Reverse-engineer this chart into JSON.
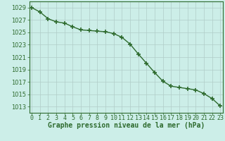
{
  "x": [
    0,
    1,
    2,
    3,
    4,
    5,
    6,
    7,
    8,
    9,
    10,
    11,
    12,
    13,
    14,
    15,
    16,
    17,
    18,
    19,
    20,
    21,
    22,
    23
  ],
  "y": [
    1029.0,
    1028.3,
    1027.2,
    1026.7,
    1026.5,
    1025.9,
    1025.4,
    1025.3,
    1025.2,
    1025.1,
    1024.8,
    1024.2,
    1023.1,
    1021.5,
    1020.0,
    1018.5,
    1017.1,
    1016.3,
    1016.1,
    1015.9,
    1015.7,
    1015.1,
    1014.3,
    1013.1
  ],
  "line_color": "#2d6a2d",
  "marker": "+",
  "marker_size": 4,
  "marker_lw": 1.2,
  "bg_color": "#cceee8",
  "grid_color": "#b0ccc8",
  "xlabel": "Graphe pression niveau de la mer (hPa)",
  "xlabel_fontsize": 7,
  "ylabel_ticks": [
    1013,
    1015,
    1017,
    1019,
    1021,
    1023,
    1025,
    1027,
    1029
  ],
  "ylim": [
    1012.0,
    1030.0
  ],
  "xlim": [
    -0.3,
    23.3
  ],
  "tick_fontsize": 6,
  "tick_color": "#2d6a2d",
  "axis_color": "#2d6a2d",
  "linewidth": 1.0
}
